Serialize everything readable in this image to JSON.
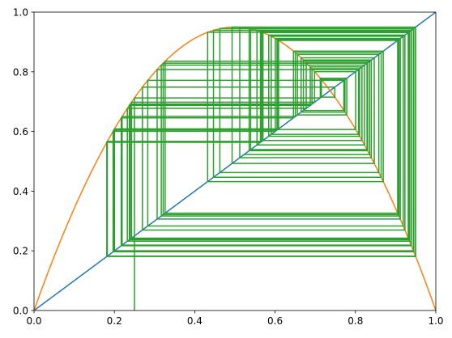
{
  "chart_data": {
    "type": "line",
    "title": "",
    "xlabel": "",
    "ylabel": "",
    "xlim": [
      0,
      1
    ],
    "ylim": [
      0,
      1
    ],
    "grid": false,
    "xticks": [
      "0.0",
      "0.2",
      "0.4",
      "0.6",
      "0.8",
      "1.0"
    ],
    "yticks": [
      "0.0",
      "0.2",
      "0.4",
      "0.6",
      "0.8",
      "1.0"
    ],
    "series": [
      {
        "color": "#1f77b4",
        "function": "identity",
        "points": [
          [
            0,
            0
          ],
          [
            1,
            1
          ]
        ]
      },
      {
        "color": "#ff7f0e",
        "function": "logistic map",
        "r": 3.8,
        "equation": "r * x * (1 - x)"
      },
      {
        "color": "#2ca02c",
        "function": "cobweb iteration",
        "x0": 0.25,
        "r": 3.8,
        "iterations": 80
      }
    ]
  }
}
